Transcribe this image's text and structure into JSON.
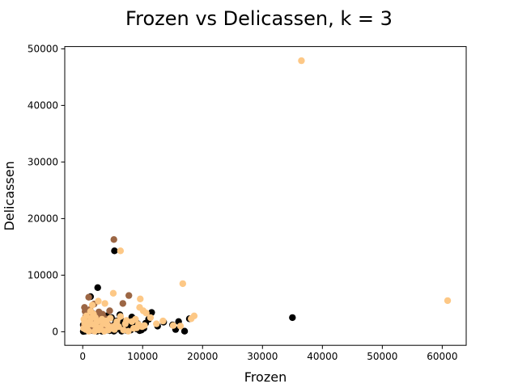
{
  "chart_data": {
    "type": "scatter",
    "title": "Frozen vs Delicassen, k = 3",
    "xlabel": "Frozen",
    "ylabel": "Delicassen",
    "xlim": [
      -3000,
      64000
    ],
    "ylim": [
      -2400,
      50400
    ],
    "xticks": [
      0,
      10000,
      20000,
      30000,
      40000,
      50000,
      60000
    ],
    "yticks": [
      0,
      10000,
      20000,
      30000,
      40000,
      50000
    ],
    "grid": false,
    "legend": false,
    "series": [
      {
        "color": "#000000",
        "points": [
          [
            35000,
            2500
          ],
          [
            5300,
            14300
          ],
          [
            2500,
            7800
          ],
          [
            1300,
            6200
          ],
          [
            3300,
            2900
          ],
          [
            600,
            2000
          ],
          [
            1000,
            1500
          ],
          [
            1500,
            1200
          ],
          [
            2000,
            800
          ],
          [
            2500,
            500
          ],
          [
            3000,
            300
          ],
          [
            3500,
            1800
          ],
          [
            4000,
            600
          ],
          [
            4500,
            200
          ],
          [
            5000,
            900
          ],
          [
            5500,
            400
          ],
          [
            6000,
            1300
          ],
          [
            6500,
            100
          ],
          [
            7000,
            700
          ],
          [
            7500,
            1600
          ],
          [
            8000,
            300
          ],
          [
            8500,
            1000
          ],
          [
            9000,
            500
          ],
          [
            9500,
            200
          ],
          [
            10000,
            800
          ],
          [
            10500,
            1500
          ],
          [
            11000,
            2200
          ],
          [
            11500,
            3400
          ],
          [
            12500,
            1000
          ],
          [
            13500,
            1700
          ],
          [
            15000,
            1200
          ],
          [
            15500,
            400
          ],
          [
            16000,
            1800
          ],
          [
            17000,
            100
          ],
          [
            17800,
            2300
          ],
          [
            200,
            300
          ],
          [
            400,
            100
          ],
          [
            800,
            600
          ],
          [
            1200,
            200
          ],
          [
            1800,
            1000
          ],
          [
            2200,
            300
          ],
          [
            2800,
            1200
          ],
          [
            3200,
            100
          ],
          [
            3800,
            700
          ],
          [
            4200,
            300
          ],
          [
            4800,
            2500
          ],
          [
            5200,
            100
          ],
          [
            5800,
            600
          ],
          [
            6200,
            3000
          ],
          [
            6800,
            1800
          ],
          [
            7200,
            500
          ],
          [
            7800,
            1000
          ],
          [
            8200,
            2600
          ],
          [
            8800,
            800
          ],
          [
            9200,
            1400
          ],
          [
            9800,
            300
          ],
          [
            10200,
            600
          ],
          [
            1500,
            3000
          ],
          [
            2000,
            2200
          ],
          [
            3000,
            1600
          ],
          [
            4000,
            2800
          ],
          [
            500,
            900
          ],
          [
            100,
            50
          ],
          [
            700,
            400
          ],
          [
            1100,
            800
          ],
          [
            1600,
            500
          ],
          [
            2600,
            1400
          ],
          [
            3600,
            200
          ],
          [
            4400,
            1100
          ],
          [
            5600,
            1900
          ],
          [
            6600,
            700
          ],
          [
            100,
            1200
          ],
          [
            300,
            700
          ],
          [
            900,
            2900
          ],
          [
            1400,
            1700
          ],
          [
            2400,
            100
          ],
          [
            3400,
            500
          ],
          [
            4600,
            400
          ],
          [
            5400,
            1400
          ],
          [
            7400,
            200
          ],
          [
            8600,
            1900
          ]
        ]
      },
      {
        "color": "#9C6644",
        "points": [
          [
            5200,
            16300
          ],
          [
            7700,
            6400
          ],
          [
            1000,
            6100
          ],
          [
            6700,
            5000
          ],
          [
            300,
            4300
          ],
          [
            1900,
            4900
          ],
          [
            1200,
            3900
          ],
          [
            2700,
            3500
          ],
          [
            3300,
            3100
          ],
          [
            500,
            2700
          ],
          [
            800,
            2300
          ],
          [
            1500,
            2100
          ],
          [
            2200,
            1900
          ],
          [
            600,
            1500
          ],
          [
            1300,
            1300
          ],
          [
            2000,
            1100
          ],
          [
            2900,
            900
          ],
          [
            3600,
            700
          ],
          [
            200,
            1000
          ],
          [
            700,
            500
          ],
          [
            1100,
            300
          ],
          [
            1700,
            200
          ],
          [
            2500,
            400
          ],
          [
            3000,
            2700
          ],
          [
            4000,
            1500
          ],
          [
            4500,
            3700
          ],
          [
            400,
            3600
          ],
          [
            1600,
            3300
          ],
          [
            2300,
            2800
          ],
          [
            3800,
            2300
          ],
          [
            4700,
            1000
          ],
          [
            900,
            1800
          ]
        ]
      },
      {
        "color": "#FDC886",
        "points": [
          [
            36500,
            47900
          ],
          [
            60900,
            5500
          ],
          [
            6300,
            14300
          ],
          [
            16700,
            8500
          ],
          [
            5100,
            6800
          ],
          [
            9600,
            5800
          ],
          [
            3700,
            5000
          ],
          [
            2600,
            5400
          ],
          [
            1600,
            4700
          ],
          [
            9500,
            4300
          ],
          [
            10100,
            3700
          ],
          [
            10600,
            3300
          ],
          [
            11300,
            2500
          ],
          [
            18600,
            2800
          ],
          [
            18100,
            2300
          ],
          [
            16300,
            1000
          ],
          [
            15100,
            1100
          ],
          [
            13400,
            1900
          ],
          [
            12300,
            1400
          ],
          [
            10300,
            1100
          ],
          [
            9000,
            700
          ],
          [
            8200,
            1800
          ],
          [
            7100,
            1400
          ],
          [
            6300,
            2700
          ],
          [
            5700,
            1800
          ],
          [
            4900,
            800
          ],
          [
            4300,
            300
          ],
          [
            3900,
            1900
          ],
          [
            3400,
            1400
          ],
          [
            2900,
            700
          ],
          [
            2400,
            1800
          ],
          [
            2100,
            2500
          ],
          [
            1800,
            3100
          ],
          [
            1400,
            2400
          ],
          [
            1100,
            1700
          ],
          [
            900,
            1200
          ],
          [
            700,
            800
          ],
          [
            500,
            400
          ],
          [
            300,
            1600
          ],
          [
            150,
            600
          ],
          [
            600,
            2800
          ],
          [
            1300,
            3600
          ],
          [
            2000,
            100
          ],
          [
            2700,
            300
          ],
          [
            3200,
            2200
          ],
          [
            4100,
            1200
          ],
          [
            5300,
            400
          ],
          [
            6000,
            900
          ],
          [
            6800,
            300
          ],
          [
            7600,
            100
          ],
          [
            8500,
            600
          ],
          [
            9300,
            1300
          ],
          [
            9900,
            900
          ],
          [
            200,
            2200
          ],
          [
            1000,
            100
          ],
          [
            1700,
            1300
          ],
          [
            2300,
            800
          ],
          [
            3600,
            100
          ],
          [
            4600,
            2400
          ],
          [
            5500,
            1200
          ],
          [
            7300,
            2000
          ],
          [
            8800,
            2200
          ]
        ]
      }
    ]
  }
}
